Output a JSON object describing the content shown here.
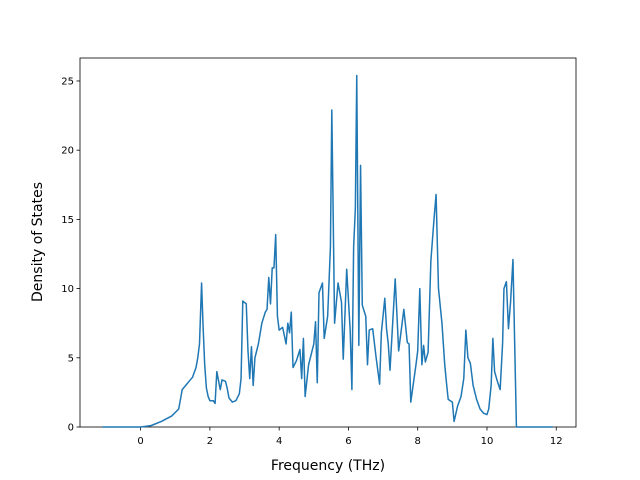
{
  "chart_data": {
    "type": "line",
    "x_label": "Frequency (THz)",
    "y_label": "Density of States",
    "color": "#1f77b4",
    "xlim": [
      -1.75,
      12.57
    ],
    "ylim": [
      0,
      26.66
    ],
    "xticks": [
      0,
      2,
      4,
      6,
      8,
      10,
      12
    ],
    "yticks": [
      0,
      5,
      10,
      15,
      20,
      25
    ],
    "grid": false,
    "x": [
      -1.1,
      0.0,
      0.3,
      0.6,
      0.9,
      1.1,
      1.15,
      1.2,
      1.3,
      1.4,
      1.5,
      1.6,
      1.65,
      1.7,
      1.76,
      1.8,
      1.85,
      1.9,
      1.95,
      2.0,
      2.1,
      2.15,
      2.2,
      2.3,
      2.35,
      2.45,
      2.5,
      2.55,
      2.65,
      2.75,
      2.85,
      2.9,
      2.95,
      3.05,
      3.1,
      3.15,
      3.2,
      3.25,
      3.3,
      3.4,
      3.5,
      3.6,
      3.65,
      3.7,
      3.75,
      3.8,
      3.85,
      3.9,
      3.95,
      4.0,
      4.1,
      4.2,
      4.25,
      4.3,
      4.35,
      4.4,
      4.5,
      4.6,
      4.65,
      4.7,
      4.75,
      4.85,
      5.0,
      5.05,
      5.1,
      5.15,
      5.25,
      5.3,
      5.4,
      5.48,
      5.52,
      5.6,
      5.7,
      5.8,
      5.85,
      5.95,
      6.05,
      6.1,
      6.15,
      6.2,
      6.24,
      6.3,
      6.35,
      6.4,
      6.5,
      6.55,
      6.6,
      6.7,
      6.8,
      6.9,
      6.95,
      7.05,
      7.1,
      7.15,
      7.2,
      7.3,
      7.35,
      7.45,
      7.6,
      7.7,
      7.75,
      7.8,
      7.95,
      8.0,
      8.06,
      8.12,
      8.17,
      8.22,
      8.3,
      8.38,
      8.47,
      8.53,
      8.6,
      8.7,
      8.78,
      8.83,
      8.88,
      9.0,
      9.05,
      9.15,
      9.25,
      9.33,
      9.39,
      9.45,
      9.52,
      9.6,
      9.7,
      9.8,
      9.9,
      10.0,
      10.05,
      10.12,
      10.17,
      10.22,
      10.3,
      10.38,
      10.45,
      10.49,
      10.56,
      10.62,
      10.68,
      10.75,
      10.8,
      10.85,
      11.9
    ],
    "values": [
      0,
      0,
      0.1,
      0.4,
      0.8,
      1.3,
      2.0,
      2.7,
      3.0,
      3.3,
      3.6,
      4.3,
      5.0,
      6.0,
      10.4,
      7.5,
      4.5,
      2.8,
      2.2,
      1.9,
      1.9,
      1.7,
      4.0,
      2.7,
      3.4,
      3.3,
      2.8,
      2.1,
      1.8,
      1.9,
      2.4,
      3.5,
      9.1,
      8.9,
      5.5,
      3.5,
      5.8,
      3.0,
      5.0,
      6.0,
      7.5,
      8.3,
      8.5,
      10.8,
      8.9,
      11.5,
      11.5,
      13.9,
      8.0,
      7.0,
      7.2,
      6.0,
      7.5,
      6.8,
      8.3,
      4.3,
      4.8,
      5.6,
      3.5,
      6.4,
      2.2,
      4.5,
      6.0,
      7.6,
      3.2,
      9.7,
      10.4,
      6.4,
      8.0,
      13.0,
      22.9,
      7.5,
      10.4,
      9.0,
      4.9,
      11.4,
      7.0,
      2.7,
      13.0,
      15.8,
      25.4,
      5.9,
      18.9,
      8.8,
      8.0,
      4.5,
      7.0,
      7.1,
      5.0,
      3.1,
      6.8,
      9.3,
      7.1,
      6.0,
      4.1,
      8.5,
      10.7,
      5.5,
      8.5,
      6.1,
      6.0,
      1.8,
      4.5,
      5.5,
      10.0,
      4.5,
      5.9,
      4.7,
      5.4,
      12.0,
      15.0,
      16.8,
      10.0,
      7.5,
      4.5,
      3.2,
      2.0,
      1.8,
      0.4,
      1.5,
      2.2,
      3.5,
      7.0,
      5.0,
      4.6,
      3.0,
      2.0,
      1.3,
      1.0,
      0.9,
      1.3,
      3.0,
      6.4,
      4.0,
      3.3,
      2.7,
      6.0,
      10.0,
      10.5,
      7.1,
      9.0,
      12.1,
      6.0,
      0,
      0
    ]
  }
}
